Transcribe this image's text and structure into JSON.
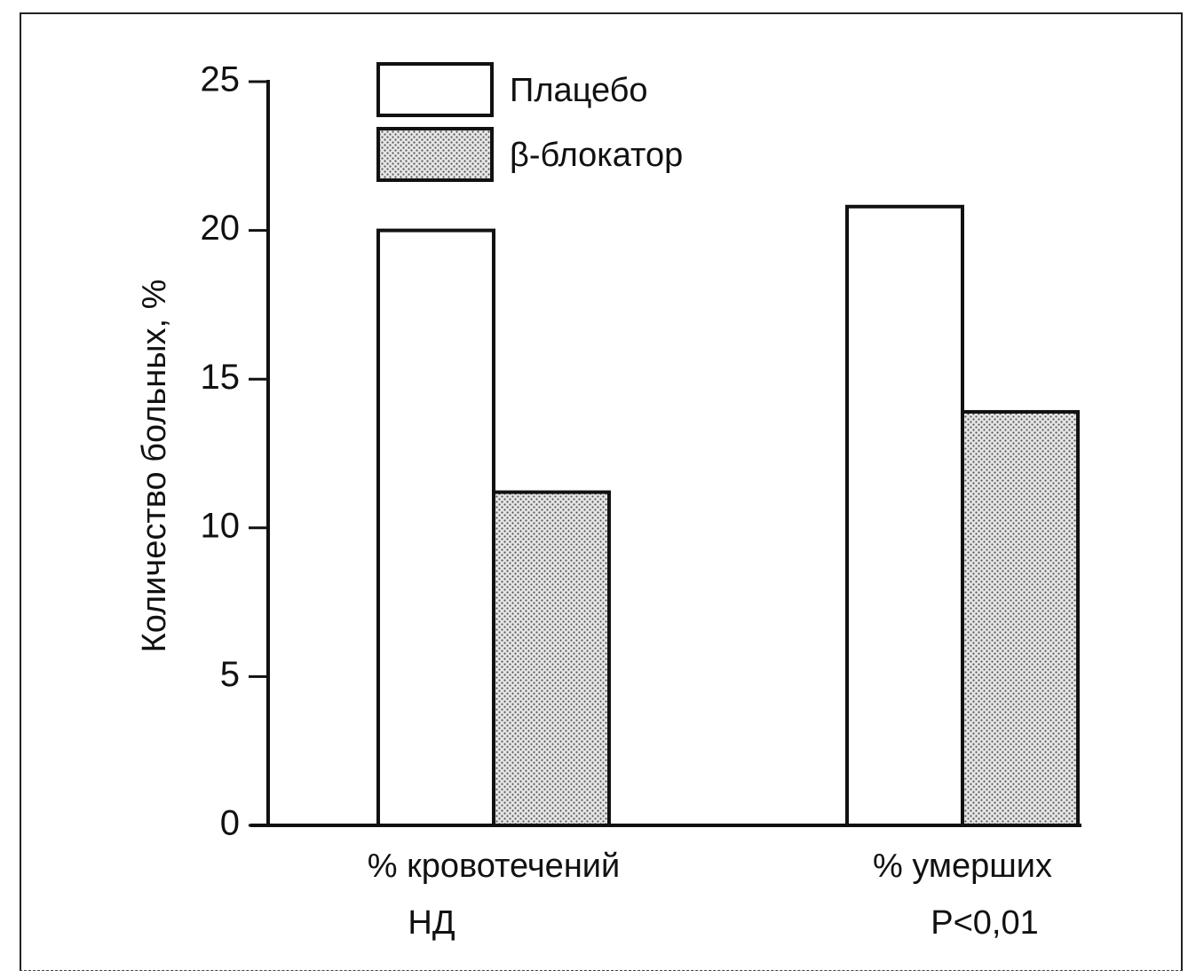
{
  "chart_data": {
    "type": "bar",
    "categories": [
      "% кровотечений",
      "% умерших"
    ],
    "category_notes": [
      "НД",
      "P<0,01"
    ],
    "series": [
      {
        "name": "Плацебо",
        "values": [
          20,
          20.8
        ],
        "fill": "#ffffff"
      },
      {
        "name": "β-блокатор",
        "values": [
          11.2,
          13.9
        ],
        "fill": "#c8c8c8"
      }
    ],
    "ylabel": "Количество больных, %",
    "ylim": [
      0,
      25
    ],
    "yticks": [
      0,
      5,
      10,
      15,
      20,
      25
    ],
    "grid": false,
    "legend_position": "top-left"
  }
}
